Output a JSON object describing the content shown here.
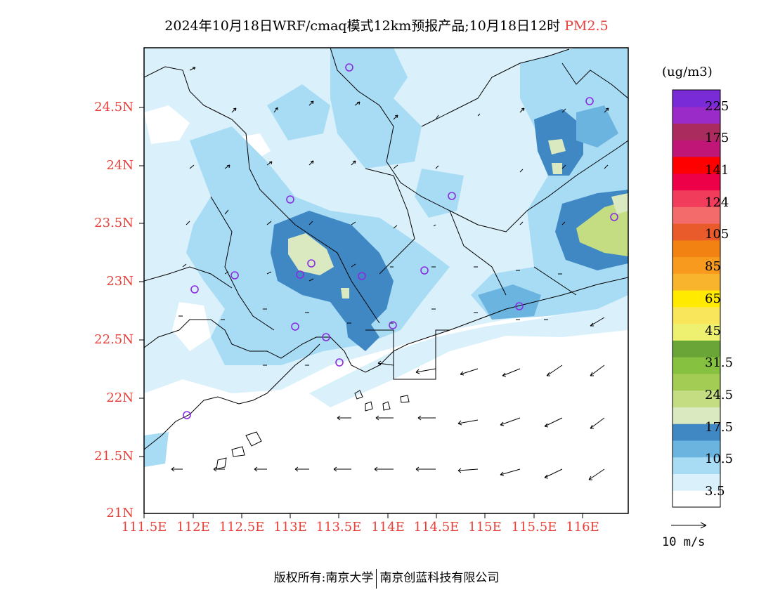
{
  "title": {
    "text": "2024年10月18日WRF/cmaq模式12km预报产品;10月18日12时",
    "variable": "PM2.5"
  },
  "map": {
    "lat_labels": [
      "24.5N",
      "24N",
      "23.5N",
      "23N",
      "22.5N",
      "22N",
      "21.5N",
      "21N"
    ],
    "lon_labels": [
      "111.5E",
      "112E",
      "112.5E",
      "113E",
      "113.5E",
      "114E",
      "114.5E",
      "115E",
      "115.5E",
      "116E"
    ]
  },
  "colorbar": {
    "unit": "(ug/m3)",
    "colors": [
      "#ffffff",
      "#daf0fb",
      "#a8dcf5",
      "#6bb4e0",
      "#3f88c4",
      "#dbe9c0",
      "#c4dd83",
      "#a3cc55",
      "#86c240",
      "#6aa637",
      "#eef070",
      "#f9e65b",
      "#ffea00",
      "#f8b42c",
      "#f79a1e",
      "#f28211",
      "#ea5b2c",
      "#f46b6b",
      "#f23c5c",
      "#ed0048",
      "#ff0000",
      "#c01678",
      "#aa2b5d",
      "#9a2bc8",
      "#7a2bd8"
    ],
    "labels": [
      "3.5",
      "10.5",
      "17.5",
      "24.5",
      "31.5",
      "45",
      "65",
      "85",
      "105",
      "124",
      "141",
      "175",
      "225"
    ]
  },
  "legend": {
    "ref_arrow_label": "10 m/s"
  },
  "footer": {
    "left": "版权所有:南京大学",
    "right": "南京创蓝科技有限公司"
  }
}
